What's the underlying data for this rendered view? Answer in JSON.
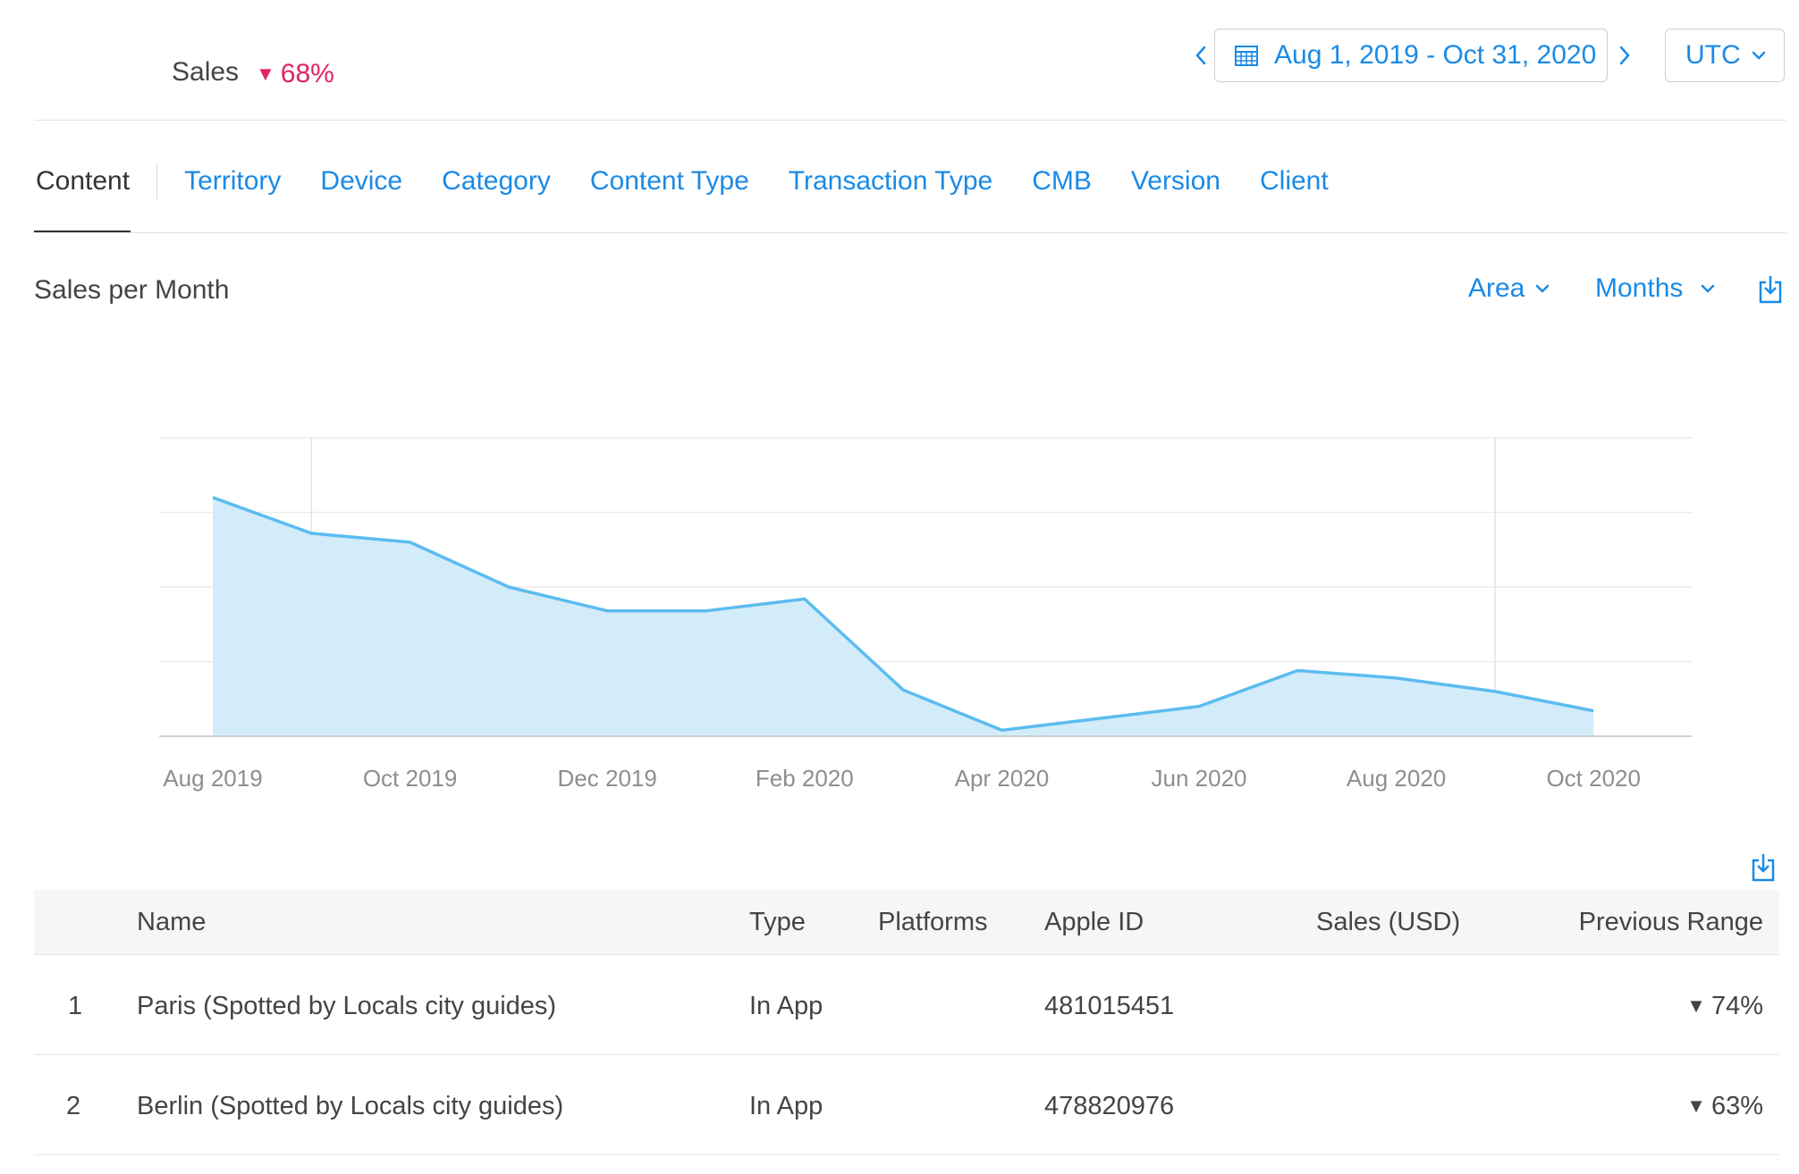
{
  "header": {
    "title": "Sales",
    "change": "68%",
    "change_dir": "down",
    "date_range": "Aug 1, 2019 - Oct 31, 2020",
    "timezone": "UTC"
  },
  "tabs": [
    {
      "label": "Content",
      "active": true
    },
    {
      "label": "Territory"
    },
    {
      "label": "Device"
    },
    {
      "label": "Category"
    },
    {
      "label": "Content Type"
    },
    {
      "label": "Transaction Type"
    },
    {
      "label": "CMB"
    },
    {
      "label": "Version"
    },
    {
      "label": "Client"
    }
  ],
  "chart_section": {
    "title": "Sales per Month",
    "chart_type_label": "Area",
    "granularity_label": "Months"
  },
  "chart_data": {
    "type": "area",
    "x": [
      "Aug 2019",
      "Sep 2019",
      "Oct 2019",
      "Nov 2019",
      "Dec 2019",
      "Jan 2020",
      "Feb 2020",
      "Mar 2020",
      "Apr 2020",
      "May 2020",
      "Jun 2020",
      "Jul 2020",
      "Aug 2020",
      "Sep 2020",
      "Oct 2020"
    ],
    "tick_labels": [
      "Aug 2019",
      "Oct 2019",
      "Dec 2019",
      "Feb 2020",
      "Apr 2020",
      "Jun 2020",
      "Aug 2020",
      "Oct 2020"
    ],
    "values": [
      0.8,
      0.68,
      0.65,
      0.5,
      0.42,
      0.42,
      0.46,
      0.155,
      0.02,
      0.06,
      0.1,
      0.22,
      0.195,
      0.15,
      0.085
    ],
    "ylim": [
      0,
      1
    ],
    "y_gridlines": 4,
    "color": "#5bbcf0",
    "fill_color": "#d3ecfa",
    "grid": true
  },
  "table": {
    "headers": {
      "name": "Name",
      "type": "Type",
      "platforms": "Platforms",
      "apple_id": "Apple ID",
      "sales": "Sales (USD)",
      "previous": "Previous Range"
    },
    "rows": [
      {
        "rank": "1",
        "name": "Paris (Spotted by Locals city guides)",
        "type": "In App",
        "platforms": "",
        "apple_id": "481015451",
        "sales": "",
        "previous": "74%"
      },
      {
        "rank": "2",
        "name": "Berlin (Spotted by Locals city guides)",
        "type": "In App",
        "platforms": "",
        "apple_id": "478820976",
        "sales": "",
        "previous": "63%"
      }
    ]
  },
  "colors": {
    "accent": "#1a8ae6",
    "negative": "#e0245e"
  }
}
